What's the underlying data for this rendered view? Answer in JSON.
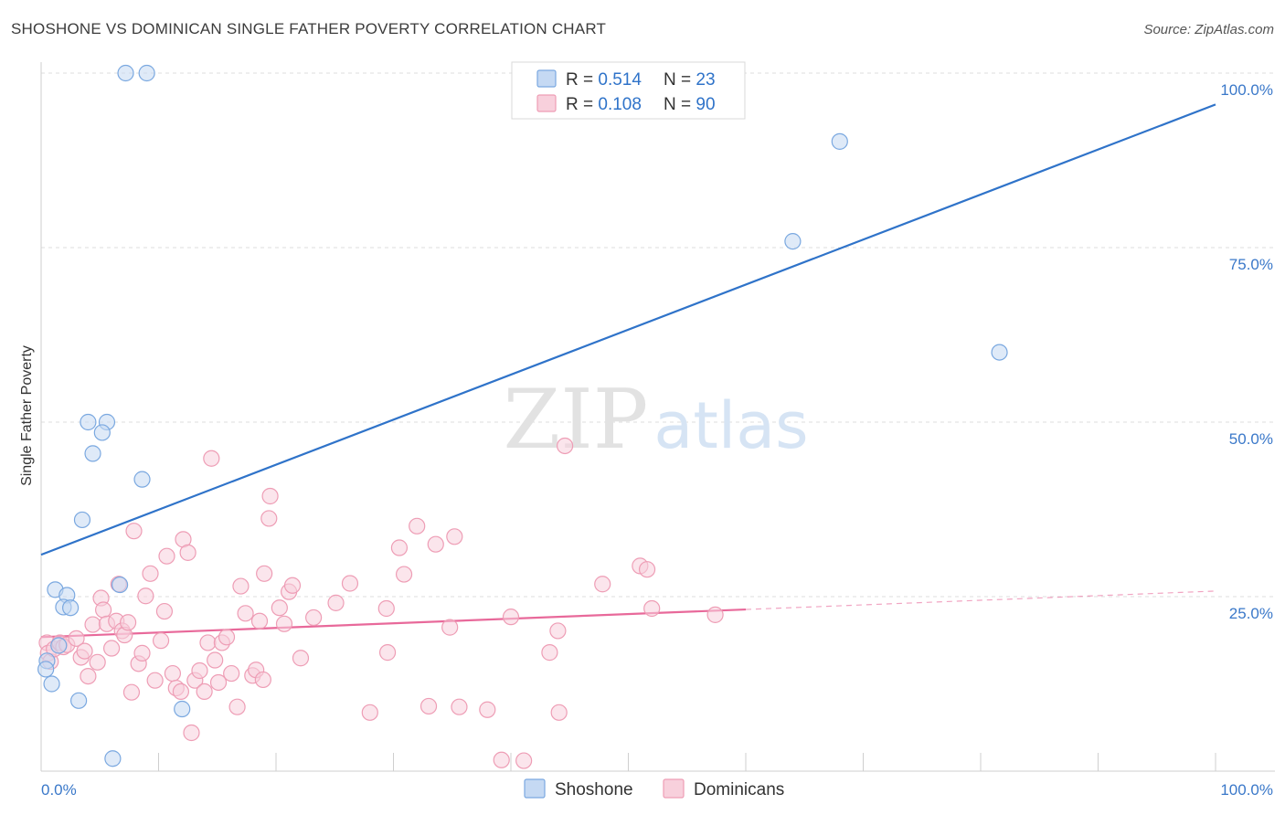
{
  "header": {
    "title": "SHOSHONE VS DOMINICAN SINGLE FATHER POVERTY CORRELATION CHART",
    "source": "Source: ZipAtlas.com"
  },
  "watermark": {
    "part1": "ZIP",
    "part2": "atlas"
  },
  "chart_data": {
    "type": "scatter",
    "title": "SHOSHONE VS DOMINICAN SINGLE FATHER POVERTY CORRELATION CHART",
    "xlabel": "",
    "ylabel": "Single Father Poverty",
    "xlim": [
      0,
      100
    ],
    "ylim": [
      0,
      100
    ],
    "x_tick_labels": {
      "left": "0.0%",
      "right": "100.0%"
    },
    "y_tick_labels": [
      {
        "value": 25,
        "label": "25.0%"
      },
      {
        "value": 50,
        "label": "50.0%"
      },
      {
        "value": 75,
        "label": "75.0%"
      },
      {
        "value": 100,
        "label": "100.0%"
      }
    ],
    "grid": true,
    "legend_position": "top-center",
    "legend": [
      {
        "r_label": "R = ",
        "r_value": "0.514",
        "n_label": "N = ",
        "n_value": "23"
      },
      {
        "r_label": "R = ",
        "r_value": "0.108",
        "n_label": "N = ",
        "n_value": "90"
      }
    ],
    "series": [
      {
        "name": "Shoshone",
        "color": "#7aa8e0",
        "fill": "#c5d9f3",
        "line_color": "#2f73c9",
        "trend": {
          "x0": 0,
          "y0": 31,
          "x1": 100,
          "y1": 95.5,
          "solid_to": 100
        },
        "points": [
          [
            7.2,
            100
          ],
          [
            9.0,
            100
          ],
          [
            68.0,
            90.2
          ],
          [
            64.0,
            75.9
          ],
          [
            81.6,
            60.0
          ],
          [
            4.0,
            50.0
          ],
          [
            5.6,
            50.0
          ],
          [
            5.2,
            48.5
          ],
          [
            4.4,
            45.5
          ],
          [
            8.6,
            41.8
          ],
          [
            3.5,
            36.0
          ],
          [
            1.2,
            26.0
          ],
          [
            2.2,
            25.2
          ],
          [
            6.7,
            26.7
          ],
          [
            1.9,
            23.5
          ],
          [
            2.5,
            23.4
          ],
          [
            0.5,
            15.8
          ],
          [
            0.4,
            14.6
          ],
          [
            0.9,
            12.5
          ],
          [
            1.5,
            18.0
          ],
          [
            3.2,
            10.1
          ],
          [
            12.0,
            8.9
          ],
          [
            6.1,
            1.8
          ]
        ]
      },
      {
        "name": "Dominicans",
        "color": "#ee9db5",
        "fill": "#f8d0dc",
        "line_color": "#e8699a",
        "trend": {
          "x0": 0,
          "y0": 19.2,
          "x1": 100,
          "y1": 25.8,
          "solid_to": 60
        },
        "points": [
          [
            0.5,
            18.4
          ],
          [
            0.6,
            16.9
          ],
          [
            0.8,
            15.7
          ],
          [
            1.1,
            17.5
          ],
          [
            1.6,
            18.4
          ],
          [
            1.9,
            17.8
          ],
          [
            2.2,
            18.1
          ],
          [
            3.0,
            19.0
          ],
          [
            3.4,
            16.3
          ],
          [
            3.7,
            17.2
          ],
          [
            4.0,
            13.6
          ],
          [
            4.4,
            21.0
          ],
          [
            4.8,
            15.6
          ],
          [
            5.1,
            24.8
          ],
          [
            5.3,
            23.1
          ],
          [
            5.6,
            21.1
          ],
          [
            6.0,
            17.6
          ],
          [
            6.4,
            21.5
          ],
          [
            6.6,
            26.8
          ],
          [
            6.9,
            20.1
          ],
          [
            7.1,
            19.5
          ],
          [
            7.4,
            21.3
          ],
          [
            7.7,
            11.3
          ],
          [
            7.9,
            34.4
          ],
          [
            8.3,
            15.4
          ],
          [
            8.6,
            16.9
          ],
          [
            8.9,
            25.1
          ],
          [
            9.3,
            28.3
          ],
          [
            9.7,
            13.0
          ],
          [
            10.2,
            18.7
          ],
          [
            10.5,
            22.9
          ],
          [
            10.7,
            30.8
          ],
          [
            11.2,
            14.0
          ],
          [
            11.5,
            11.9
          ],
          [
            11.9,
            11.4
          ],
          [
            12.1,
            33.2
          ],
          [
            12.5,
            31.3
          ],
          [
            12.8,
            5.5
          ],
          [
            13.1,
            13.0
          ],
          [
            13.5,
            14.4
          ],
          [
            13.9,
            11.4
          ],
          [
            14.2,
            18.4
          ],
          [
            14.5,
            44.8
          ],
          [
            14.8,
            15.9
          ],
          [
            15.1,
            12.7
          ],
          [
            15.4,
            18.4
          ],
          [
            15.8,
            19.2
          ],
          [
            16.2,
            14.0
          ],
          [
            16.7,
            9.2
          ],
          [
            17.0,
            26.5
          ],
          [
            17.4,
            22.6
          ],
          [
            18.0,
            13.7
          ],
          [
            18.3,
            14.5
          ],
          [
            18.6,
            21.5
          ],
          [
            18.9,
            13.1
          ],
          [
            19.0,
            28.3
          ],
          [
            19.4,
            36.2
          ],
          [
            19.5,
            39.4
          ],
          [
            20.3,
            23.4
          ],
          [
            20.7,
            21.1
          ],
          [
            21.1,
            25.7
          ],
          [
            21.4,
            26.6
          ],
          [
            22.1,
            16.2
          ],
          [
            23.2,
            22.0
          ],
          [
            25.1,
            24.1
          ],
          [
            26.3,
            26.9
          ],
          [
            28.0,
            8.4
          ],
          [
            29.4,
            23.3
          ],
          [
            29.5,
            17.0
          ],
          [
            30.5,
            32.0
          ],
          [
            30.9,
            28.2
          ],
          [
            32.0,
            35.1
          ],
          [
            33.0,
            9.3
          ],
          [
            33.6,
            32.5
          ],
          [
            34.8,
            20.6
          ],
          [
            35.2,
            33.6
          ],
          [
            35.6,
            9.2
          ],
          [
            38.0,
            8.8
          ],
          [
            39.2,
            1.6
          ],
          [
            40.0,
            22.1
          ],
          [
            41.1,
            1.5
          ],
          [
            44.1,
            8.4
          ],
          [
            44.6,
            46.6
          ],
          [
            43.3,
            17.0
          ],
          [
            44.0,
            20.1
          ],
          [
            47.8,
            26.8
          ],
          [
            51.0,
            29.4
          ],
          [
            51.6,
            28.9
          ],
          [
            52.0,
            23.3
          ],
          [
            57.4,
            22.4
          ]
        ]
      }
    ]
  }
}
